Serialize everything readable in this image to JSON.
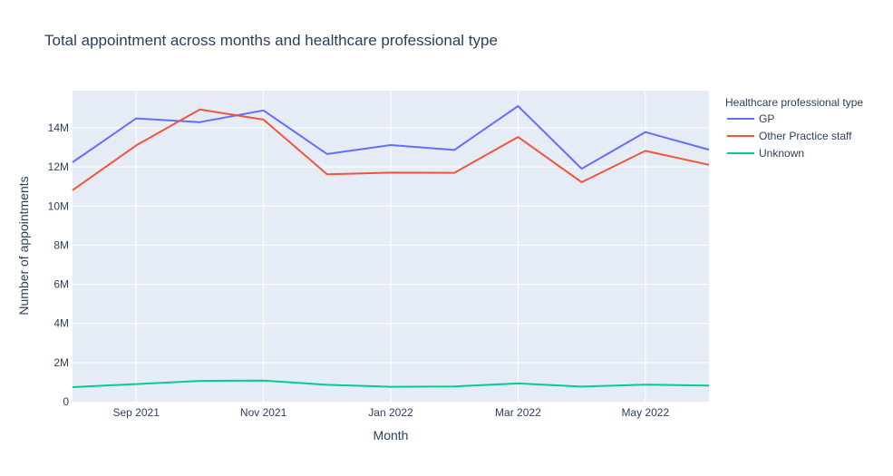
{
  "chart_data": {
    "type": "line",
    "title": "Total appointment across months and healthcare professional type",
    "xlabel": "Month",
    "ylabel": "Number of appointments",
    "x": [
      "2021-08",
      "2021-09",
      "2021-10",
      "2021-11",
      "2021-12",
      "2022-01",
      "2022-02",
      "2022-03",
      "2022-04",
      "2022-05",
      "2022-06"
    ],
    "x_ticks": [
      {
        "month": "2021-09",
        "label": "Sep 2021"
      },
      {
        "month": "2021-11",
        "label": "Nov 2021"
      },
      {
        "month": "2022-01",
        "label": "Jan 2022"
      },
      {
        "month": "2022-03",
        "label": "Mar 2022"
      },
      {
        "month": "2022-05",
        "label": "May 2022"
      }
    ],
    "y_ticks": [
      {
        "value": 0,
        "label": "0"
      },
      {
        "value": 2000000,
        "label": "2M"
      },
      {
        "value": 4000000,
        "label": "4M"
      },
      {
        "value": 6000000,
        "label": "6M"
      },
      {
        "value": 8000000,
        "label": "8M"
      },
      {
        "value": 10000000,
        "label": "10M"
      },
      {
        "value": 12000000,
        "label": "12M"
      },
      {
        "value": 14000000,
        "label": "14M"
      }
    ],
    "ylim": [
      0,
      15900000
    ],
    "grid": true,
    "legend": {
      "title": "Healthcare professional type",
      "placement": "right"
    },
    "series": [
      {
        "name": "GP",
        "color": "#636efa",
        "values": [
          12240000,
          14480000,
          14290000,
          14890000,
          12660000,
          13120000,
          12870000,
          15110000,
          11910000,
          13780000,
          12880000
        ]
      },
      {
        "name": "Other Practice staff",
        "color": "#ef553b",
        "values": [
          10810000,
          13100000,
          14940000,
          14420000,
          11620000,
          11710000,
          11700000,
          13530000,
          11220000,
          12820000,
          12110000
        ]
      },
      {
        "name": "Unknown",
        "color": "#00cc96",
        "values": [
          740000,
          900000,
          1060000,
          1080000,
          860000,
          760000,
          780000,
          930000,
          770000,
          870000,
          820000
        ]
      }
    ]
  }
}
